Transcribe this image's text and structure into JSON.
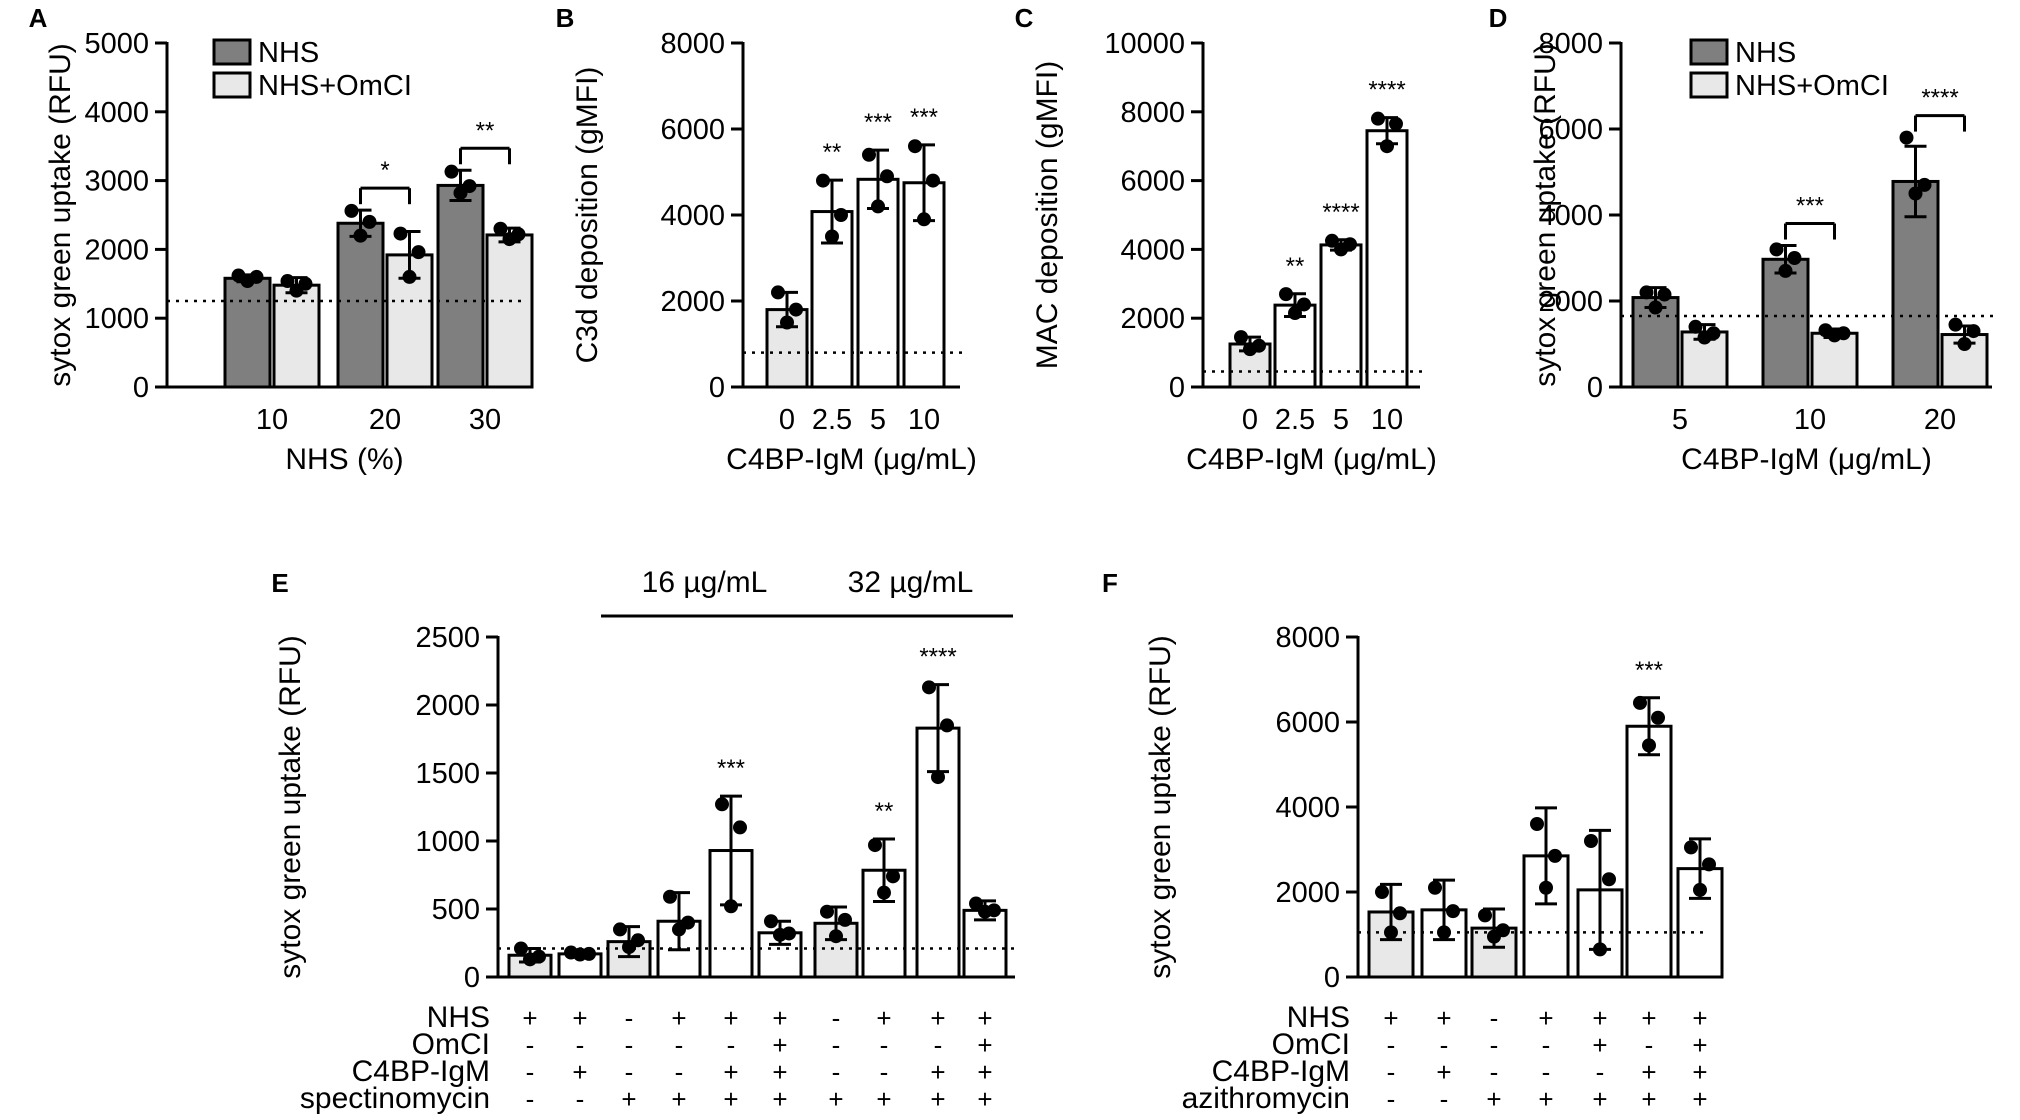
{
  "colors": {
    "nhs": "#7f7f7f",
    "nhs_omci": "#e8e8e8",
    "white": "#ffffff",
    "axis": "#000000"
  },
  "chart_data": [
    {
      "panel": "A",
      "type": "bar",
      "ylabel": "sytox green uptake (RFU)",
      "xlabel": "NHS (%)",
      "ylim": [
        0,
        5000
      ],
      "yticks": [
        0,
        1000,
        2000,
        3000,
        4000,
        5000
      ],
      "categories": [
        "10",
        "20",
        "30"
      ],
      "baseline": 1250,
      "legend": [
        {
          "name": "NHS",
          "color": "nhs"
        },
        {
          "name": "NHS+OmCI",
          "color": "nhs_omci"
        }
      ],
      "bars": [
        {
          "cat": 0,
          "series": 0,
          "value": 1580,
          "err": 50,
          "points": [
            1620,
            1600,
            1540
          ]
        },
        {
          "cat": 0,
          "series": 1,
          "value": 1480,
          "err": 110,
          "points": [
            1540,
            1500,
            1400
          ]
        },
        {
          "cat": 1,
          "series": 0,
          "value": 2380,
          "err": 190,
          "points": [
            2560,
            2400,
            2200
          ]
        },
        {
          "cat": 1,
          "series": 1,
          "value": 1920,
          "err": 340,
          "points": [
            2230,
            1960,
            1600
          ]
        },
        {
          "cat": 2,
          "series": 0,
          "value": 2930,
          "err": 220,
          "points": [
            3130,
            2920,
            2820
          ]
        },
        {
          "cat": 2,
          "series": 1,
          "value": 2210,
          "err": 100,
          "points": [
            2300,
            2220,
            2150
          ]
        }
      ],
      "brackets": [
        {
          "cat": 1,
          "label": "*"
        },
        {
          "cat": 2,
          "label": "**"
        }
      ]
    },
    {
      "panel": "B",
      "type": "bar",
      "ylabel": "C3d deposition (gMFI)",
      "xlabel": "C4BP-IgM (μg/mL)",
      "ylim": [
        0,
        8000
      ],
      "yticks": [
        0,
        2000,
        4000,
        6000,
        8000
      ],
      "categories": [
        "0",
        "2.5",
        "5",
        "10"
      ],
      "baseline": 800,
      "bars": [
        {
          "cat": 0,
          "value": 1800,
          "err": 400,
          "points": [
            2200,
            1800,
            1500
          ],
          "fill": "nhs_omci"
        },
        {
          "cat": 1,
          "value": 4080,
          "err": 730,
          "points": [
            4800,
            4000,
            3500
          ],
          "fill": "white"
        },
        {
          "cat": 2,
          "value": 4830,
          "err": 680,
          "points": [
            5400,
            4900,
            4200
          ],
          "fill": "white"
        },
        {
          "cat": 3,
          "value": 4750,
          "err": 880,
          "points": [
            5600,
            4800,
            3900
          ],
          "fill": "white"
        }
      ],
      "stars": [
        {
          "cat": 1,
          "label": "**"
        },
        {
          "cat": 2,
          "label": "***"
        },
        {
          "cat": 3,
          "label": "***"
        }
      ]
    },
    {
      "panel": "C",
      "type": "bar",
      "ylabel": "MAC deposition (gMFI)",
      "xlabel": "C4BP-IgM (μg/mL)",
      "ylim": [
        0,
        10000
      ],
      "yticks": [
        0,
        2000,
        4000,
        6000,
        8000,
        10000
      ],
      "categories": [
        "0",
        "2.5",
        "5",
        "10"
      ],
      "baseline": 450,
      "bars": [
        {
          "cat": 0,
          "value": 1250,
          "err": 200,
          "points": [
            1450,
            1200,
            1100
          ],
          "fill": "nhs_omci"
        },
        {
          "cat": 1,
          "value": 2380,
          "err": 330,
          "points": [
            2700,
            2400,
            2150
          ],
          "fill": "white"
        },
        {
          "cat": 2,
          "value": 4130,
          "err": 150,
          "points": [
            4250,
            4150,
            4000
          ],
          "fill": "white"
        },
        {
          "cat": 3,
          "value": 7450,
          "err": 380,
          "points": [
            7800,
            7650,
            7000
          ],
          "fill": "white"
        }
      ],
      "stars": [
        {
          "cat": 1,
          "label": "**"
        },
        {
          "cat": 2,
          "label": "****"
        },
        {
          "cat": 3,
          "label": "****"
        }
      ]
    },
    {
      "panel": "D",
      "type": "bar",
      "ylabel": "sytox green uptake (RFU)",
      "xlabel": "C4BP-IgM (μg/mL)",
      "ylim": [
        0,
        8000
      ],
      "yticks": [
        0,
        2000,
        4000,
        6000,
        8000
      ],
      "categories": [
        "5",
        "10",
        "20"
      ],
      "baseline": 1650,
      "legend": [
        {
          "name": "NHS",
          "color": "nhs"
        },
        {
          "name": "NHS+OmCI",
          "color": "nhs_omci"
        }
      ],
      "bars": [
        {
          "cat": 0,
          "series": 0,
          "value": 2080,
          "err": 230,
          "points": [
            2200,
            2150,
            1850
          ]
        },
        {
          "cat": 0,
          "series": 1,
          "value": 1280,
          "err": 170,
          "points": [
            1400,
            1250,
            1150
          ]
        },
        {
          "cat": 1,
          "series": 0,
          "value": 2970,
          "err": 320,
          "points": [
            3200,
            3000,
            2700
          ]
        },
        {
          "cat": 1,
          "series": 1,
          "value": 1250,
          "err": 100,
          "points": [
            1320,
            1250,
            1200
          ]
        },
        {
          "cat": 2,
          "series": 0,
          "value": 4780,
          "err": 820,
          "points": [
            5800,
            4700,
            4500
          ]
        },
        {
          "cat": 2,
          "series": 1,
          "value": 1220,
          "err": 200,
          "points": [
            1450,
            1300,
            1000
          ]
        }
      ],
      "brackets": [
        {
          "cat": 1,
          "label": "***"
        },
        {
          "cat": 2,
          "label": "****"
        }
      ]
    },
    {
      "panel": "E",
      "type": "bar",
      "ylabel": "sytox green uptake (RFU)",
      "ylim": [
        0,
        2500
      ],
      "yticks": [
        0,
        500,
        1000,
        1500,
        2000,
        2500
      ],
      "baseline": 210,
      "group_labels": [
        {
          "text": "16 µg/mL",
          "from": 2,
          "to": 5
        },
        {
          "text": "32 µg/mL",
          "from": 6,
          "to": 9
        }
      ],
      "bars": [
        {
          "value": 160,
          "err": 50,
          "points": [
            210,
            150,
            130
          ],
          "fill": "nhs_omci"
        },
        {
          "value": 170,
          "err": 15,
          "points": [
            180,
            170,
            165
          ],
          "fill": "white"
        },
        {
          "value": 260,
          "err": 110,
          "points": [
            350,
            270,
            220
          ],
          "fill": "nhs_omci"
        },
        {
          "value": 410,
          "err": 210,
          "points": [
            590,
            400,
            350
          ],
          "fill": "white"
        },
        {
          "value": 930,
          "err": 400,
          "points": [
            1270,
            1100,
            520
          ],
          "fill": "white"
        },
        {
          "value": 325,
          "err": 85,
          "points": [
            410,
            320,
            310
          ],
          "fill": "white"
        },
        {
          "value": 395,
          "err": 120,
          "points": [
            480,
            420,
            300
          ],
          "fill": "nhs_omci"
        },
        {
          "value": 785,
          "err": 230,
          "points": [
            970,
            740,
            620
          ],
          "fill": "white"
        },
        {
          "value": 1830,
          "err": 320,
          "points": [
            2130,
            1850,
            1470
          ],
          "fill": "white"
        },
        {
          "value": 490,
          "err": 70,
          "points": [
            540,
            490,
            480
          ],
          "fill": "white"
        }
      ],
      "stars": [
        {
          "cat": 4,
          "label": "***"
        },
        {
          "cat": 7,
          "label": "**"
        },
        {
          "cat": 8,
          "label": "****"
        }
      ],
      "table": {
        "rows": [
          "NHS",
          "OmCI",
          "C4BP-IgM",
          "spectinomycin"
        ],
        "values": [
          [
            "+",
            "+",
            "-",
            "+",
            "+",
            "+",
            "-",
            "+",
            "+",
            "+"
          ],
          [
            "-",
            "-",
            "-",
            "-",
            "-",
            "+",
            "-",
            "-",
            "-",
            "+"
          ],
          [
            "-",
            "+",
            "-",
            "-",
            "+",
            "+",
            "-",
            "-",
            "+",
            "+"
          ],
          [
            "-",
            "-",
            "+",
            "+",
            "+",
            "+",
            "+",
            "+",
            "+",
            "+"
          ]
        ]
      }
    },
    {
      "panel": "F",
      "type": "bar",
      "ylabel": "sytox green uptake (RFU)",
      "ylim": [
        0,
        8000
      ],
      "yticks": [
        0,
        2000,
        4000,
        6000,
        8000
      ],
      "baseline": 1050,
      "bars": [
        {
          "value": 1530,
          "err": 650,
          "points": [
            2000,
            1500,
            1050
          ],
          "fill": "nhs_omci"
        },
        {
          "value": 1580,
          "err": 700,
          "points": [
            2100,
            1550,
            1050
          ],
          "fill": "white"
        },
        {
          "value": 1150,
          "err": 450,
          "points": [
            1450,
            1100,
            950
          ],
          "fill": "nhs_omci"
        },
        {
          "value": 2850,
          "err": 1130,
          "points": [
            3600,
            2850,
            2100
          ],
          "fill": "white"
        },
        {
          "value": 2050,
          "err": 1400,
          "points": [
            3200,
            2300,
            650
          ],
          "fill": "white"
        },
        {
          "value": 5900,
          "err": 670,
          "points": [
            6450,
            6100,
            5450
          ],
          "fill": "white"
        },
        {
          "value": 2550,
          "err": 700,
          "points": [
            3050,
            2650,
            2050
          ],
          "fill": "white"
        }
      ],
      "stars": [
        {
          "cat": 5,
          "label": "***"
        }
      ],
      "table": {
        "rows": [
          "NHS",
          "OmCI",
          "C4BP-IgM",
          "azithromycin"
        ],
        "values": [
          [
            "+",
            "+",
            "-",
            "+",
            "+",
            "+",
            "+"
          ],
          [
            "-",
            "-",
            "-",
            "-",
            "+",
            "-",
            "+"
          ],
          [
            "-",
            "+",
            "-",
            "-",
            "-",
            "+",
            "+"
          ],
          [
            "-",
            "-",
            "+",
            "+",
            "+",
            "+",
            "+"
          ]
        ]
      }
    }
  ]
}
